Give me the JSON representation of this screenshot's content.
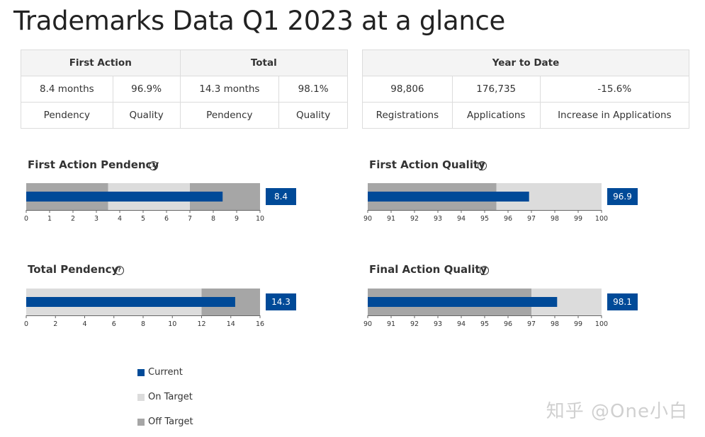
{
  "title": "Trademarks Data Q1 2023 at a glance",
  "summary_left": {
    "headers": [
      "First Action",
      "Total"
    ],
    "values": [
      "8.4 months",
      "96.9%",
      "14.3 months",
      "98.1%"
    ],
    "labels": [
      "Pendency",
      "Quality",
      "Pendency",
      "Quality"
    ]
  },
  "summary_right": {
    "header": "Year to Date",
    "values": [
      "98,806",
      "176,735",
      "-15.6%"
    ],
    "labels": [
      "Registrations",
      "Applications",
      "Increase in Applications"
    ]
  },
  "help_glyph": "?",
  "colors": {
    "current": "#004a98",
    "on_target": "#dcdcdc",
    "off_target": "#a6a6a6"
  },
  "chart_data": [
    {
      "type": "bar",
      "orientation": "horizontal-bullet",
      "title": "First Action Pendency",
      "value": 8.4,
      "value_label": "8.4",
      "xlim": [
        0,
        10
      ],
      "ticks": [
        0,
        1,
        2,
        3,
        4,
        5,
        6,
        7,
        8,
        9,
        10
      ],
      "ranges": [
        {
          "from": 0,
          "to": 3.5,
          "band": "off_target"
        },
        {
          "from": 3.5,
          "to": 7,
          "band": "on_target"
        },
        {
          "from": 7,
          "to": 10,
          "band": "off_target"
        }
      ]
    },
    {
      "type": "bar",
      "orientation": "horizontal-bullet",
      "title": "First Action Quality",
      "value": 96.9,
      "value_label": "96.9",
      "xlim": [
        90,
        100
      ],
      "ticks": [
        90,
        91,
        92,
        93,
        94,
        95,
        96,
        97,
        98,
        99,
        100
      ],
      "ranges": [
        {
          "from": 90,
          "to": 95.5,
          "band": "off_target"
        },
        {
          "from": 95.5,
          "to": 100,
          "band": "on_target"
        }
      ]
    },
    {
      "type": "bar",
      "orientation": "horizontal-bullet",
      "title": "Total Pendency",
      "value": 14.3,
      "value_label": "14.3",
      "xlim": [
        0,
        16
      ],
      "ticks": [
        0,
        2,
        4,
        6,
        8,
        10,
        12,
        14,
        16
      ],
      "ranges": [
        {
          "from": 0,
          "to": 12,
          "band": "on_target"
        },
        {
          "from": 12,
          "to": 16,
          "band": "off_target"
        }
      ]
    },
    {
      "type": "bar",
      "orientation": "horizontal-bullet",
      "title": "Final Action Quality",
      "value": 98.1,
      "value_label": "98.1",
      "xlim": [
        90,
        100
      ],
      "ticks": [
        90,
        91,
        92,
        93,
        94,
        95,
        96,
        97,
        98,
        99,
        100
      ],
      "ranges": [
        {
          "from": 90,
          "to": 97,
          "band": "off_target"
        },
        {
          "from": 97,
          "to": 100,
          "band": "on_target"
        }
      ]
    }
  ],
  "legend": [
    {
      "label": "Current",
      "color": "#004a98"
    },
    {
      "label": "On Target",
      "color": "#dcdcdc"
    },
    {
      "label": "Off Target",
      "color": "#a6a6a6"
    }
  ],
  "watermark": "知乎 @One小白"
}
